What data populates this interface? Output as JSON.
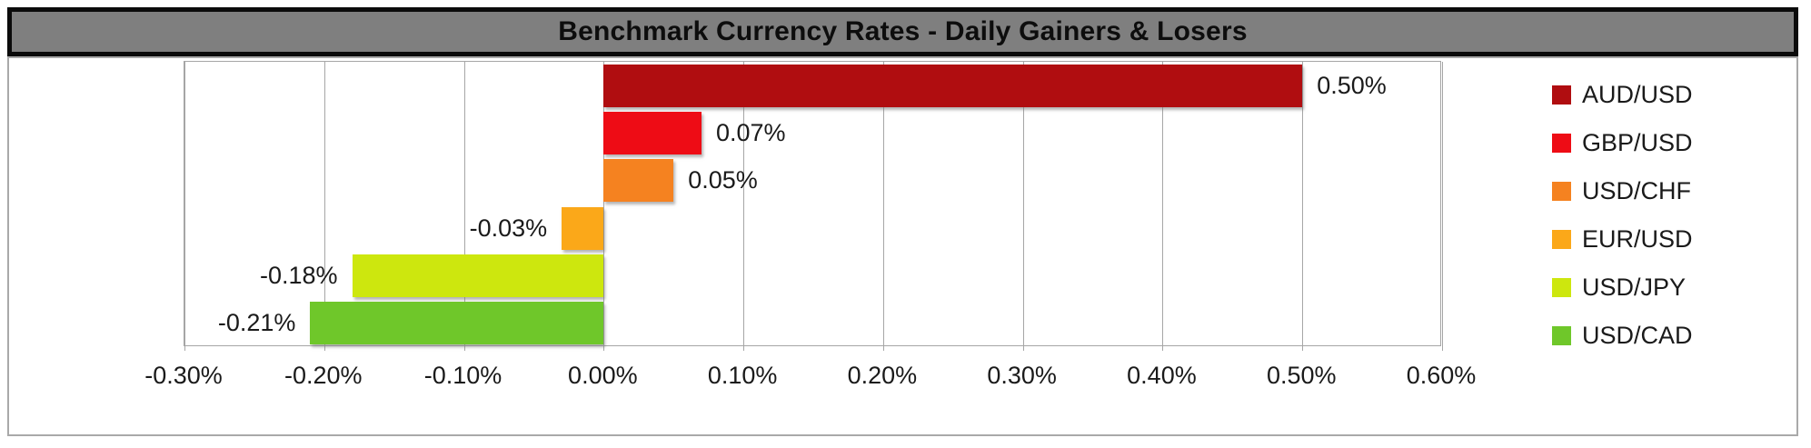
{
  "title": "Benchmark Currency Rates - Daily Gainers & Losers",
  "colors": {
    "title_bar_fill": "#7f7f7f",
    "title_bar_border": "#0b0b0b",
    "chart_border": "#a9a9a9",
    "gridline": "#a6a6a6",
    "label_text": "#1a1a1a"
  },
  "chart_data": {
    "type": "bar",
    "orientation": "horizontal",
    "title": "Benchmark Currency Rates - Daily Gainers & Losers",
    "categories": [
      "AUD/USD",
      "GBP/USD",
      "USD/CHF",
      "EUR/USD",
      "USD/JPY",
      "USD/CAD"
    ],
    "values": [
      0.5,
      0.07,
      0.05,
      -0.03,
      -0.18,
      -0.21
    ],
    "data_labels": [
      "0.50%",
      "0.07%",
      "0.05%",
      "-0.03%",
      "-0.18%",
      "-0.21%"
    ],
    "bar_colors": [
      "#b00d10",
      "#ee0c15",
      "#f58220",
      "#fba819",
      "#cde70e",
      "#6fc72a"
    ],
    "x_min": -0.3,
    "x_max": 0.6,
    "x_tick_values": [
      -0.3,
      -0.2,
      -0.1,
      0.0,
      0.1,
      0.2,
      0.3,
      0.4,
      0.5,
      0.6
    ],
    "x_tick_labels": [
      "-0.30%",
      "-0.20%",
      "-0.10%",
      "0.00%",
      "0.10%",
      "0.20%",
      "0.30%",
      "0.40%",
      "0.50%",
      "0.60%"
    ],
    "grid": true,
    "legend_position": "right",
    "legend": [
      {
        "label": "AUD/USD",
        "color": "#b00d10"
      },
      {
        "label": "GBP/USD",
        "color": "#ee0c15"
      },
      {
        "label": "USD/CHF",
        "color": "#f58220"
      },
      {
        "label": "EUR/USD",
        "color": "#fba819"
      },
      {
        "label": "USD/JPY",
        "color": "#cde70e"
      },
      {
        "label": "USD/CAD",
        "color": "#6fc72a"
      }
    ]
  }
}
